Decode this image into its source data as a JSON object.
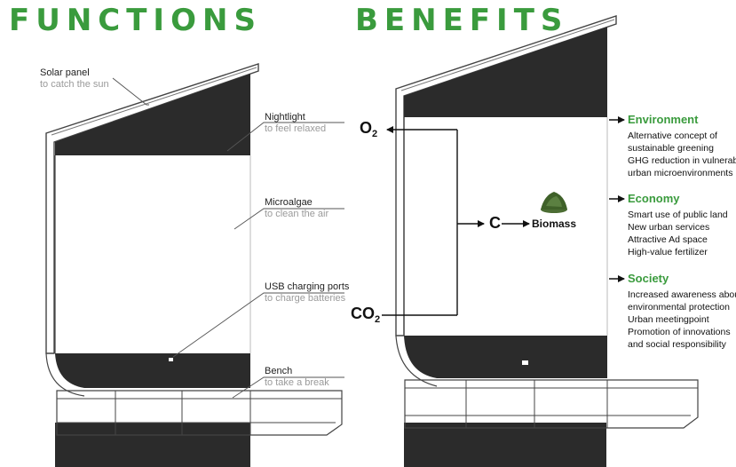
{
  "functions": {
    "title": "FUNCTIONS",
    "items": [
      {
        "name": "Solar panel",
        "desc": "to catch the sun"
      },
      {
        "name": "Nightlight",
        "desc": "to feel relaxed"
      },
      {
        "name": "Microalgae",
        "desc": "to clean the air"
      },
      {
        "name": "USB charging ports",
        "desc": "to charge batteries"
      },
      {
        "name": "Bench",
        "desc": "to take a break"
      }
    ]
  },
  "benefits": {
    "title": "BENEFITS",
    "flow": {
      "o2": "O",
      "o2_sub": "2",
      "co2": "CO",
      "co2_sub": "2",
      "carbon": "C",
      "biomass": "Biomass"
    },
    "sections": [
      {
        "heading": "Environment",
        "items": [
          "Alternative concept of",
          "sustainable greening",
          "GHG reduction in vulnerable",
          "urban microenvironments"
        ]
      },
      {
        "heading": "Economy",
        "items": [
          "Smart use of public land",
          "New urban services",
          "Attractive Ad space",
          "High-value fertilizer"
        ]
      },
      {
        "heading": "Society",
        "items": [
          "Increased awareness about",
          "environmental protection",
          "Urban meetingpoint",
          "Promotion of innovations",
          "and social responsibility"
        ]
      }
    ]
  },
  "colors": {
    "accent_green": "#3a9b3d",
    "panel_dark": "#2b2b2b"
  }
}
